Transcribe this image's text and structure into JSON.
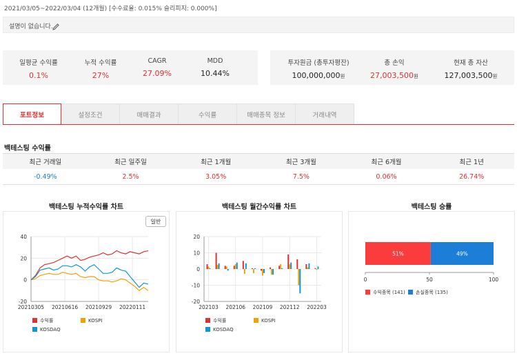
{
  "header": {
    "period": "2021/03/05~2022/03/04 (12개월) [수수료율: 0.015% 슬리피지: 0.000%]",
    "description": "설명이 없습니다."
  },
  "stats_left": [
    {
      "label": "일평균 수익률",
      "value": "0.1%"
    },
    {
      "label": "누적 수익률",
      "value": "27%"
    },
    {
      "label": "CAGR",
      "value": "27.09%"
    },
    {
      "label": "MDD",
      "value": "10.44%"
    }
  ],
  "stats_right": [
    {
      "label": "투자원금 (총투자평잔)",
      "value": "100,000,000",
      "unit": "원"
    },
    {
      "label": "총 손익",
      "value": "27,003,500",
      "unit": "원"
    },
    {
      "label": "현재 총 자산",
      "value": "127,003,500",
      "unit": "원"
    }
  ],
  "tabs": [
    "포트정보",
    "설정조건",
    "매매결과",
    "수익률",
    "매매종목 정보",
    "거래내역"
  ],
  "returns": {
    "title": "백테스팅 수익률",
    "headers": [
      "최근 거래일",
      "최근 일주일",
      "최근 1개월",
      "최근 3개월",
      "최근 6개월",
      "최근 1년"
    ],
    "values": [
      "-0.49%",
      "2.5%",
      "3.05%",
      "7.5%",
      "0.06%",
      "26.74%"
    ]
  },
  "colors": {
    "red": "#e03131",
    "blue": "#1c7ed6",
    "orange": "#f59f00",
    "cyan": "#1098d6",
    "tab_active": "#e03131"
  },
  "icons": {
    "edit": "pencil-icon"
  },
  "chart_data": [
    {
      "type": "line",
      "title": "백테스팅 누적수익률 차트",
      "button": "일반",
      "x_ticks": [
        "20210305",
        "20210616",
        "20210929",
        "20220111"
      ],
      "y_ticks": [
        "40",
        "20",
        "0",
        "-20"
      ],
      "ylim": [
        -20,
        40
      ],
      "grid": true,
      "legend_position": "bottom",
      "x": [
        "20210305",
        "20210319",
        "20210402",
        "20210416",
        "20210430",
        "20210514",
        "20210528",
        "20210611",
        "20210625",
        "20210709",
        "20210723",
        "20210806",
        "20210820",
        "20210903",
        "20210917",
        "20211001",
        "20211015",
        "20211029",
        "20211112",
        "20211126",
        "20211210",
        "20211224",
        "20220107",
        "20220121",
        "20220204",
        "20220218",
        "20220304"
      ],
      "series": [
        {
          "name": "수익률",
          "color": "#e03131",
          "values": [
            0,
            4,
            11,
            14,
            15,
            16,
            18,
            20,
            22,
            20,
            22,
            18,
            19,
            21,
            22,
            23,
            25,
            23,
            24,
            27,
            25,
            24,
            26,
            25,
            24,
            26,
            27
          ]
        },
        {
          "name": "KOSPI",
          "color": "#f59f00",
          "values": [
            0,
            1,
            4,
            5,
            6,
            5,
            5,
            7,
            6,
            5,
            6,
            3,
            2,
            3,
            3,
            0,
            -1,
            -1,
            -2,
            -1,
            1,
            0,
            -3,
            -6,
            -10,
            -7,
            -10
          ]
        },
        {
          "name": "KOSDAQ",
          "color": "#1098d6",
          "values": [
            0,
            3,
            9,
            10,
            11,
            9,
            10,
            13,
            13,
            12,
            14,
            12,
            8,
            12,
            14,
            10,
            6,
            6,
            7,
            11,
            9,
            8,
            3,
            -2,
            -7,
            -3,
            -4
          ]
        }
      ]
    },
    {
      "type": "bar",
      "title": "백테스팅 월간수익률 차트",
      "x_ticks": [
        "202103",
        "202106",
        "202109",
        "202112",
        "202203"
      ],
      "y_ticks": [
        "20",
        "10",
        "0",
        "-10",
        "-20"
      ],
      "ylim": [
        -20,
        20
      ],
      "grid": true,
      "legend_position": "bottom",
      "categories": [
        "202103",
        "202104",
        "202105",
        "202106",
        "202107",
        "202108",
        "202109",
        "202110",
        "202111",
        "202112",
        "202201",
        "202202",
        "202203"
      ],
      "series": [
        {
          "name": "수익률",
          "color": "#e03131",
          "values": [
            3,
            10,
            2,
            2,
            5,
            0.5,
            -1,
            1,
            2,
            9,
            6,
            3,
            0.5
          ]
        },
        {
          "name": "KOSPI",
          "color": "#f59f00",
          "values": [
            1.5,
            2.5,
            1.5,
            3,
            -3,
            -2.5,
            -4,
            -3.5,
            3,
            3,
            -10,
            1,
            -0.5
          ]
        },
        {
          "name": "KOSDAQ",
          "color": "#1098d6",
          "values": [
            0.5,
            3.5,
            -1,
            4,
            3.5,
            0.5,
            -2.5,
            -3.5,
            0.5,
            4,
            -15,
            3.5,
            1.5
          ]
        }
      ]
    },
    {
      "type": "bar",
      "title": "백테스팅 승률",
      "x_ticks": [
        "0",
        "50",
        "100"
      ],
      "xlim": [
        0,
        100
      ],
      "legend_position": "bottom",
      "stacked": true,
      "horizontal": true,
      "series": [
        {
          "name": "수익종목 (141)",
          "label": "51%",
          "color": "#fa3c3c",
          "values": [
            51
          ]
        },
        {
          "name": "손실종목 (135)",
          "label": "49%",
          "color": "#1c7ed6",
          "values": [
            49
          ]
        }
      ]
    }
  ]
}
